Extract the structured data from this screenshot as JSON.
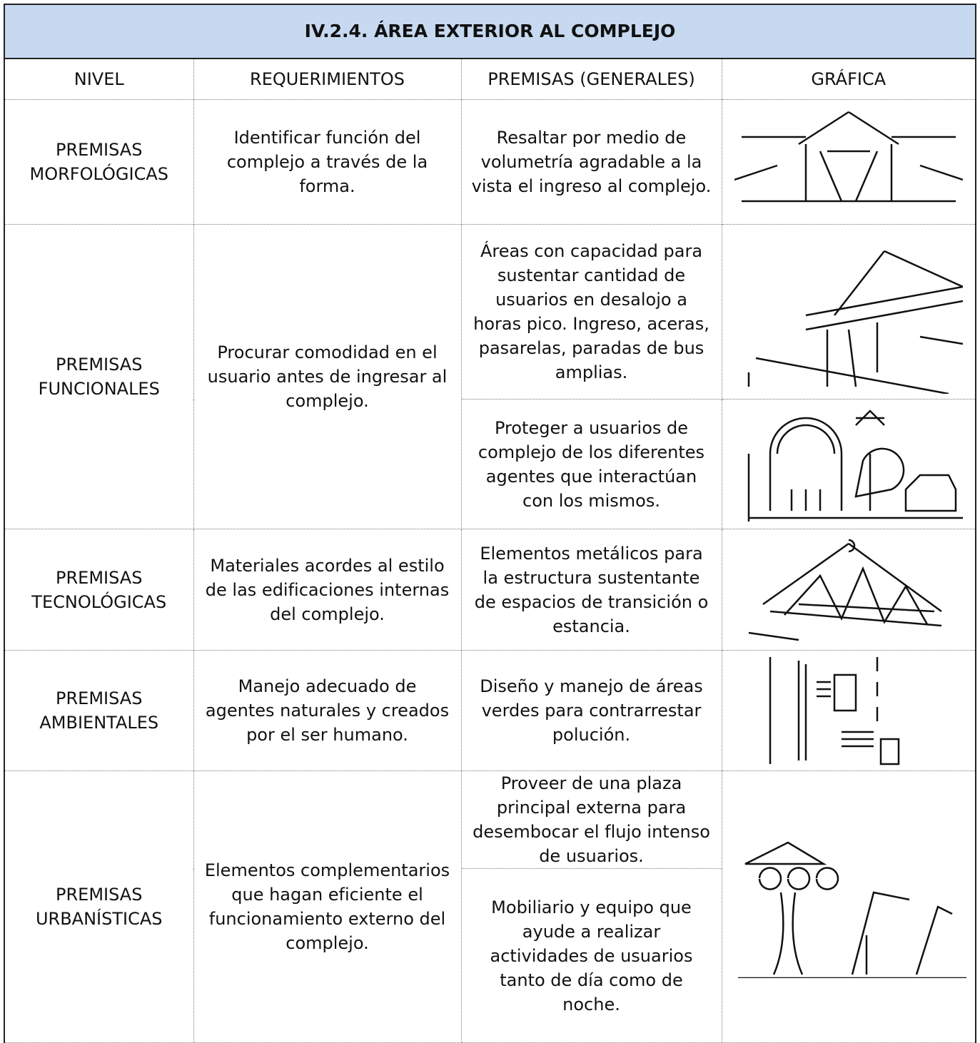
{
  "table": {
    "title": "IV.2.4. ÁREA EXTERIOR AL COMPLEJO",
    "headers": [
      "NIVEL",
      "REQUERIMIENTOS",
      "PREMISAS (GENERALES)",
      "GRÁFICA"
    ],
    "rows": [
      {
        "level": "PREMISAS MORFOLÓGICAS",
        "requirement": "Identificar función del complejo a través de la forma.",
        "premises": [
          "Resaltar por medio de volumetría agradable a la vista el ingreso al complejo."
        ]
      },
      {
        "level": "PREMISAS FUNCIONALES",
        "requirement": "Procurar comodidad en el usuario antes de ingresar al complejo.",
        "premises": [
          "Áreas con capacidad para sustentar cantidad de usuarios en desalojo a horas pico. Ingreso, aceras, pasarelas, paradas de bus amplias.",
          "Proteger a usuarios de complejo de los diferentes agentes que interactúan con los mismos."
        ]
      },
      {
        "level": "PREMISAS TECNOLÓGICAS",
        "requirement": "Materiales acordes al estilo de las edificaciones internas del complejo.",
        "premises": [
          "Elementos metálicos para la estructura sustentante de espacios de transición o estancia."
        ]
      },
      {
        "level": "PREMISAS AMBIENTALES",
        "requirement": "Manejo adecuado de agentes naturales y creados por el ser humano.",
        "premises": [
          "Diseño y manejo de áreas verdes para contrarrestar polución."
        ]
      },
      {
        "level": "PREMISAS URBANÍSTICAS",
        "requirement": "Elementos complementarios que hagan eficiente el funcionamiento externo del complejo.",
        "premises": [
          "Proveer de una plaza principal externa para desembocar el flujo intenso de usuarios.",
          "Mobiliario y equipo que ayude a realizar actividades de usuarios tanto de día como de noche."
        ]
      }
    ]
  }
}
